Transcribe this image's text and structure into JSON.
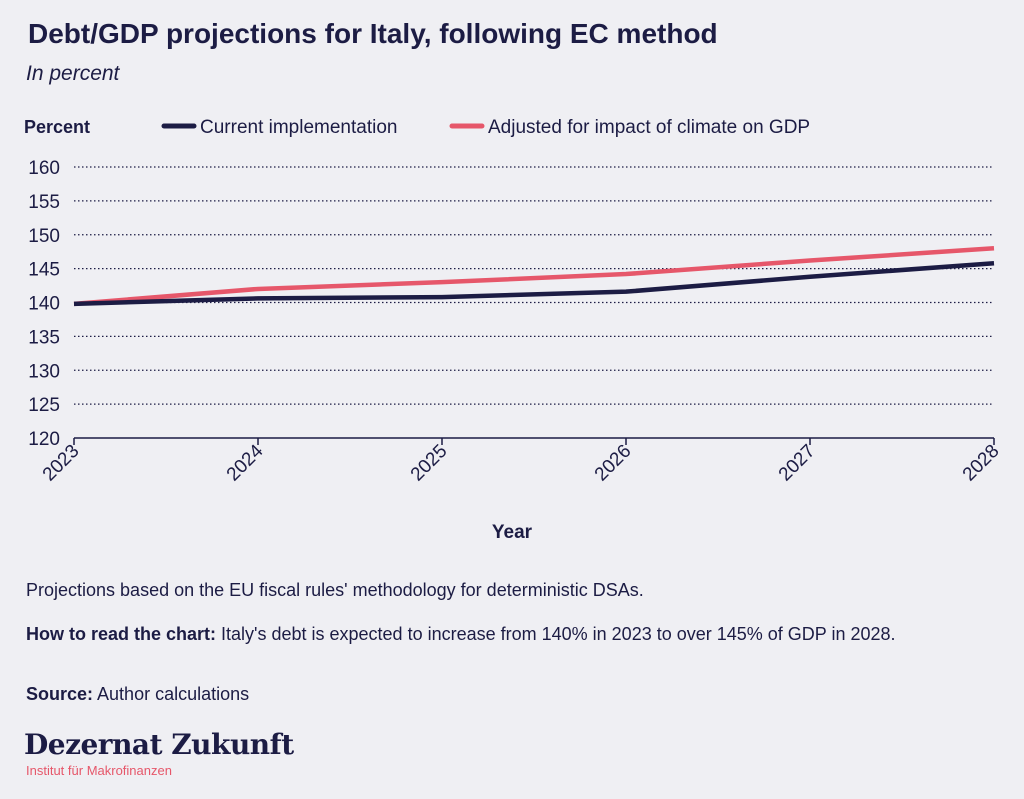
{
  "title": "Debt/GDP projections for Italy, following EC method",
  "subtitle": "In percent",
  "chart_data": {
    "type": "line",
    "title": "Debt/GDP projections for Italy, following EC method",
    "subtitle": "In percent",
    "xlabel": "Year",
    "ylabel": "Percent",
    "x": [
      "2023",
      "2024",
      "2025",
      "2026",
      "2027",
      "2028"
    ],
    "ylim": [
      120,
      160
    ],
    "yticks": [
      120,
      125,
      130,
      135,
      140,
      145,
      150,
      155,
      160
    ],
    "grid": true,
    "legend_position": "top",
    "series": [
      {
        "name": "Current implementation",
        "color": "#1c1c44",
        "values": [
          139.8,
          140.6,
          140.8,
          141.6,
          143.8,
          145.8
        ]
      },
      {
        "name": "Adjusted for impact of climate on GDP",
        "color": "#e6576a",
        "values": [
          139.8,
          142.0,
          143.0,
          144.2,
          146.2,
          148.0
        ]
      }
    ]
  },
  "notes": {
    "description": "Projections based on the EU fiscal rules' methodology for deterministic DSAs.",
    "how_to_read_label": "How to read the chart:",
    "how_to_read_text": " Italy's debt is expected to increase from 140% in 2023 to over 145% of GDP in 2028.",
    "source_label": "Source:",
    "source_text": " Author calculations"
  },
  "logo": {
    "name": "Dezernat Zukunft",
    "tagline": "Institut für Makrofinanzen"
  }
}
